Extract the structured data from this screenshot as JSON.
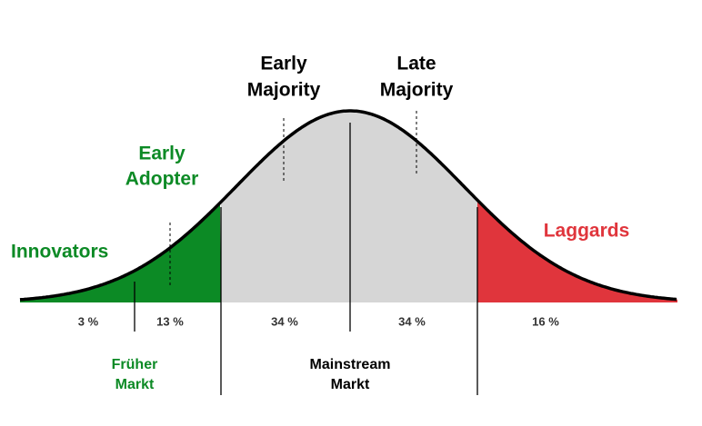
{
  "groups": [
    {
      "name": [
        "Innovators"
      ],
      "share": "3 %"
    },
    {
      "name": [
        "Early",
        "Adopter"
      ],
      "share": "13 %"
    },
    {
      "name": [
        "Early",
        "Majority"
      ],
      "share": "34 %"
    },
    {
      "name": [
        "Late",
        "Majority"
      ],
      "share": "34 %"
    },
    {
      "name": [
        "Laggards"
      ],
      "share": "16 %"
    }
  ],
  "markets": [
    {
      "name": [
        "Früher",
        "Markt"
      ]
    },
    {
      "name": [
        "Mainstream",
        "Markt"
      ]
    }
  ]
}
